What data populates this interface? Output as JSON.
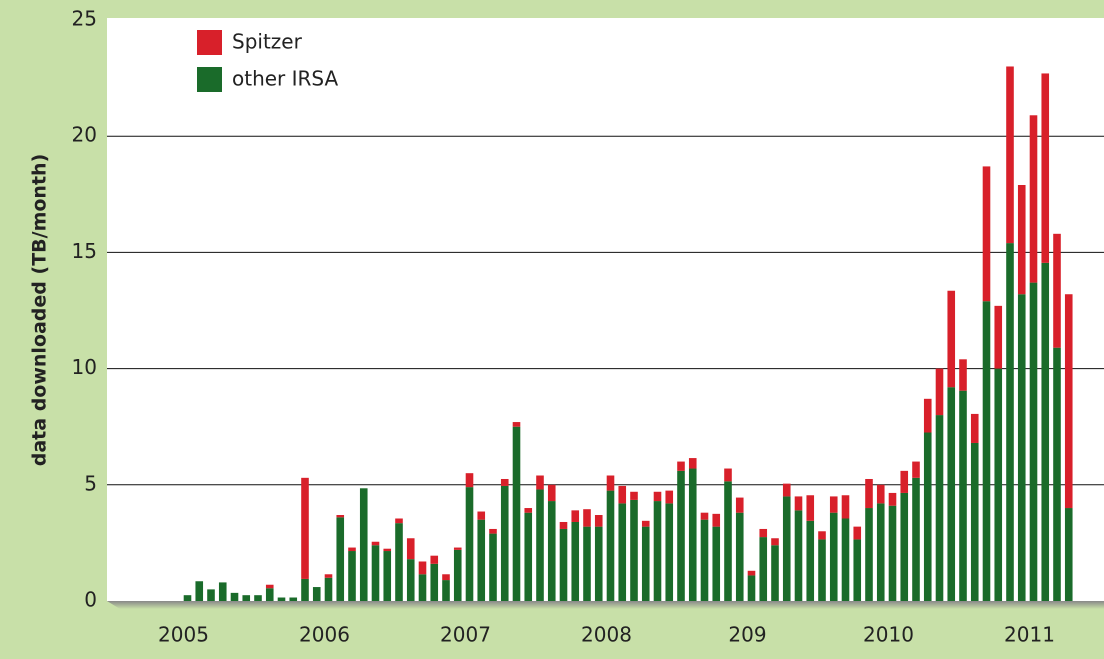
{
  "chart_data": {
    "type": "stacked_bar",
    "y_label": "data downloaded (TB/month)",
    "categories": [
      "2005",
      null,
      null,
      null,
      null,
      null,
      null,
      null,
      null,
      null,
      null,
      null,
      "2006",
      null,
      null,
      null,
      null,
      null,
      null,
      null,
      null,
      null,
      null,
      null,
      "2007",
      null,
      null,
      null,
      null,
      null,
      null,
      null,
      null,
      null,
      null,
      null,
      "2008",
      null,
      null,
      null,
      null,
      null,
      null,
      null,
      null,
      null,
      null,
      null,
      "209",
      null,
      null,
      null,
      null,
      null,
      null,
      null,
      null,
      null,
      null,
      null,
      "2010",
      null,
      null,
      null,
      null,
      null,
      null,
      null,
      null,
      null,
      null,
      null,
      "2011",
      null,
      null,
      null
    ],
    "series": [
      {
        "name": "Spitzer",
        "color": "#d8202a",
        "values": [
          0,
          0,
          0,
          0,
          0,
          0,
          0,
          0.15,
          0,
          0,
          4.35,
          0,
          0.15,
          0.1,
          0.15,
          0,
          0.15,
          0.1,
          0.2,
          0.9,
          0.55,
          0.35,
          0.25,
          0.1,
          0.6,
          0.35,
          0.2,
          0.3,
          0.2,
          0.2,
          0.6,
          0.7,
          0.3,
          0.5,
          0.75,
          0.5,
          0.65,
          0.75,
          0.35,
          0.25,
          0.4,
          0.55,
          0.4,
          0.45,
          0.3,
          0.55,
          0.55,
          0.65,
          0.2,
          0.35,
          0.3,
          0.55,
          0.6,
          1.1,
          0.35,
          0.7,
          1.0,
          0.55,
          1.25,
          0.8,
          0.55,
          0.95,
          0.7,
          1.45,
          2.0,
          4.15,
          1.35,
          1.25,
          5.8,
          2.7,
          7.6,
          4.7,
          7.2,
          8.15,
          4.9,
          9.2
        ]
      },
      {
        "name": "other IRSA",
        "color": "#1a6b2a",
        "values": [
          0.25,
          0.85,
          0.5,
          0.8,
          0.35,
          0.25,
          0.25,
          0.55,
          0.15,
          0.15,
          0.95,
          0.6,
          1.0,
          3.6,
          2.15,
          4.85,
          2.4,
          2.15,
          3.35,
          1.8,
          1.15,
          1.6,
          0.9,
          2.2,
          4.9,
          3.5,
          2.9,
          4.95,
          7.5,
          3.8,
          4.8,
          4.3,
          3.1,
          3.4,
          3.2,
          3.2,
          4.75,
          4.2,
          4.35,
          3.2,
          4.3,
          4.2,
          5.6,
          5.7,
          3.5,
          3.2,
          5.15,
          3.8,
          1.1,
          2.75,
          2.4,
          4.5,
          3.9,
          3.45,
          2.65,
          3.8,
          3.55,
          2.65,
          4.0,
          4.2,
          4.1,
          4.65,
          5.3,
          7.25,
          8.0,
          9.2,
          9.05,
          6.8,
          12.9,
          10.0,
          15.4,
          13.2,
          13.7,
          14.55,
          10.9,
          4.0
        ]
      }
    ],
    "stack_order": [
      "other IRSA",
      "Spitzer"
    ],
    "ylim": [
      0,
      25
    ],
    "yticks": [
      0,
      5,
      10,
      15,
      20,
      25
    ],
    "grid": true,
    "legend": "top-left"
  }
}
